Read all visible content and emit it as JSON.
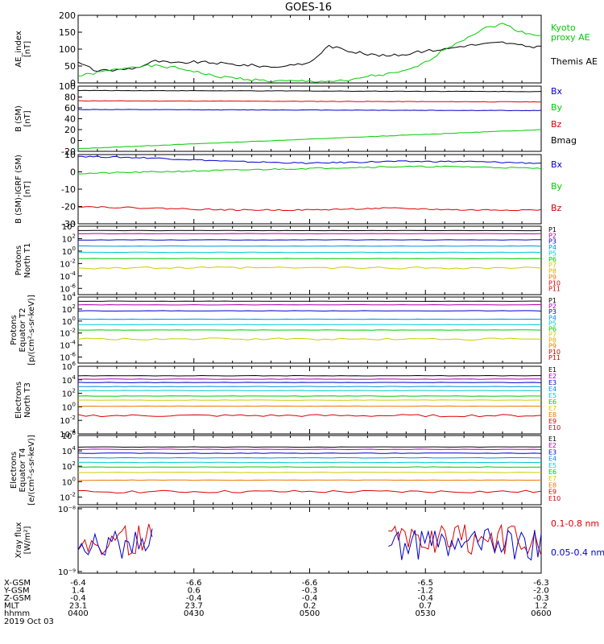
{
  "title": "GOES-16",
  "colors": {
    "black": "#000000",
    "red": "#dd0000",
    "green": "#00cc00",
    "blue": "#0000cc",
    "cyan": "#00cccc",
    "yellow": "#cccc00",
    "orange": "#ee7700"
  },
  "chart_data": [
    {
      "type": "line",
      "panel": "ae",
      "ylabel": [
        "AE_index",
        "[nT]"
      ],
      "ylim": [
        0,
        200
      ],
      "ticks": [
        0,
        50,
        100,
        150,
        200
      ],
      "legend": [
        {
          "text": "Kyoto",
          "color": "#00cc00"
        },
        {
          "text": "proxy AE",
          "color": "#00cc00"
        },
        {
          "text": "Themis AE",
          "color": "#000000"
        }
      ],
      "x": [
        "0400",
        "0405",
        "0410",
        "0415",
        "0420",
        "0425",
        "0430",
        "0435",
        "0440",
        "0445",
        "0450",
        "0455",
        "0500",
        "0505",
        "0510",
        "0515",
        "0520",
        "0525",
        "0530",
        "0535",
        "0540",
        "0545",
        "0550",
        "0555",
        "0600"
      ],
      "series": [
        {
          "name": "Themis AE",
          "color": "#000000",
          "values": [
            60,
            35,
            38,
            45,
            65,
            58,
            62,
            60,
            55,
            52,
            48,
            50,
            60,
            110,
            95,
            85,
            80,
            85,
            95,
            100,
            110,
            115,
            120,
            110,
            105
          ]
        },
        {
          "name": "Kyoto proxy AE",
          "color": "#00cc00",
          "values": [
            20,
            30,
            40,
            50,
            50,
            45,
            35,
            20,
            15,
            10,
            5,
            5,
            5,
            5,
            5,
            20,
            25,
            35,
            60,
            100,
            130,
            160,
            175,
            150,
            140
          ]
        }
      ]
    },
    {
      "type": "line",
      "panel": "bsm",
      "ylabel": [
        "B (SM)",
        "[nT]"
      ],
      "ylim": [
        -20,
        100
      ],
      "ticks": [
        -20,
        0,
        20,
        40,
        60,
        80,
        100
      ],
      "legend": [
        {
          "text": "Bx",
          "color": "#0000cc"
        },
        {
          "text": "By",
          "color": "#00cc00"
        },
        {
          "text": "Bz",
          "color": "#dd0000"
        },
        {
          "text": "Bmag",
          "color": "#000000"
        }
      ],
      "x": [
        "0400",
        "0600"
      ],
      "series": [
        {
          "name": "Bmag",
          "color": "#000000",
          "values": [
            92,
            90
          ]
        },
        {
          "name": "Bz",
          "color": "#dd0000",
          "values": [
            73,
            71
          ]
        },
        {
          "name": "Bx",
          "color": "#0000cc",
          "values": [
            57,
            55
          ]
        },
        {
          "name": "By",
          "color": "#00cc00",
          "values": [
            -15,
            20
          ]
        }
      ]
    },
    {
      "type": "line",
      "panel": "bigrf",
      "ylabel": [
        "B (SM)-IGRF (SM)",
        "[nT]"
      ],
      "ylim": [
        -30,
        10
      ],
      "ticks": [
        -30,
        -20,
        -10,
        0,
        10
      ],
      "legend": [
        {
          "text": "Bx",
          "color": "#0000cc"
        },
        {
          "text": "By",
          "color": "#00cc00"
        },
        {
          "text": "Bz",
          "color": "#dd0000"
        }
      ],
      "x": [
        "0400",
        "0420",
        "0440",
        "0500",
        "0520",
        "0540",
        "0600"
      ],
      "series": [
        {
          "name": "Bx",
          "color": "#0000cc",
          "values": [
            9,
            8,
            6,
            5,
            6,
            6,
            5
          ]
        },
        {
          "name": "By",
          "color": "#00cc00",
          "values": [
            -1,
            0,
            1,
            2,
            3,
            3,
            2
          ]
        },
        {
          "name": "Bz",
          "color": "#dd0000",
          "values": [
            -20,
            -21,
            -22,
            -22,
            -21,
            -22,
            -22
          ]
        }
      ]
    },
    {
      "type": "line",
      "panel": "p1",
      "log": true,
      "ylabel": [
        "Protons",
        "North T1"
      ],
      "ylim_exp": [
        -7,
        4
      ],
      "tick_exps": [
        -6,
        -4,
        -2,
        0,
        2,
        4
      ],
      "legend": [
        "P1",
        "P2",
        "P3",
        "P4",
        "P5",
        "P6",
        "P7",
        "P8",
        "P9",
        "P10",
        "P11"
      ],
      "legend_colors": [
        "#000000",
        "#ad00ad",
        "#0000cc",
        "#0090dd",
        "#00cccc",
        "#00cc00",
        "#cccc00",
        "#ddaa00",
        "#ee7700",
        "#dd0000",
        "#dd0000"
      ],
      "series": [
        {
          "name": "P1",
          "color": "#000000",
          "log10": 3.3
        },
        {
          "name": "P2",
          "color": "#ad00ad",
          "log10": 2.8
        },
        {
          "name": "P3",
          "color": "#0000cc",
          "log10": 1.8
        },
        {
          "name": "P4",
          "color": "#0090dd",
          "log10": 0.8
        },
        {
          "name": "P5",
          "color": "#00cccc",
          "log10": -0.2
        },
        {
          "name": "P6",
          "color": "#00cc00",
          "log10": -1.2
        },
        {
          "name": "P7",
          "color": "#cccc00",
          "log10": -2.7
        }
      ]
    },
    {
      "type": "line",
      "panel": "p2",
      "log": true,
      "ylabel": [
        "Protons",
        "Equator T2",
        "[p/(cm²-s-sr-keV)]"
      ],
      "ylim_exp": [
        -7,
        4
      ],
      "tick_exps": [
        -6,
        -4,
        -2,
        0,
        2,
        4
      ],
      "legend": [
        "P1",
        "P2",
        "P3",
        "P4",
        "P5",
        "P6",
        "P7",
        "P8",
        "P9",
        "P10",
        "P11"
      ],
      "legend_colors": [
        "#000000",
        "#ad00ad",
        "#0000cc",
        "#0090dd",
        "#00cccc",
        "#00cc00",
        "#cccc00",
        "#ddaa00",
        "#ee7700",
        "#dd0000",
        "#dd0000"
      ],
      "series": [
        {
          "name": "P1",
          "color": "#000000",
          "log10": 3.3
        },
        {
          "name": "P2",
          "color": "#ad00ad",
          "log10": 2.7
        },
        {
          "name": "P3",
          "color": "#0000cc",
          "log10": 1.7
        },
        {
          "name": "P4",
          "color": "#0090dd",
          "log10": 0.3
        },
        {
          "name": "P5",
          "color": "#00cccc",
          "log10": -0.6
        },
        {
          "name": "P6",
          "color": "#00cc00",
          "log10": -1.5
        },
        {
          "name": "P7",
          "color": "#cccc00",
          "log10": -3.0
        }
      ]
    },
    {
      "type": "line",
      "panel": "e1",
      "log": true,
      "ylabel": [
        "Electrons",
        "North T3"
      ],
      "ylim_exp": [
        -4,
        6
      ],
      "tick_exps": [
        -4,
        -2,
        0,
        2,
        4,
        6
      ],
      "legend": [
        "E1",
        "E2",
        "E3",
        "E4",
        "E5",
        "E6",
        "E7",
        "E8",
        "E9",
        "E10"
      ],
      "legend_colors": [
        "#000000",
        "#ad00ad",
        "#0000cc",
        "#0090dd",
        "#00cccc",
        "#00cc00",
        "#cccc00",
        "#ee7700",
        "#dd0000",
        "#dd0000"
      ],
      "series": [
        {
          "name": "E1",
          "color": "#000000",
          "log10": 4.6
        },
        {
          "name": "E2",
          "color": "#ad00ad",
          "log10": 4.1
        },
        {
          "name": "E3",
          "color": "#0000cc",
          "log10": 3.6
        },
        {
          "name": "E4",
          "color": "#0090dd",
          "log10": 3.0
        },
        {
          "name": "E5",
          "color": "#00cccc",
          "log10": 2.4
        },
        {
          "name": "E6",
          "color": "#00cc00",
          "log10": 1.6
        },
        {
          "name": "E7",
          "color": "#cccc00",
          "log10": 1.0
        },
        {
          "name": "E8",
          "color": "#ee7700",
          "log10": 0.1
        },
        {
          "name": "E9",
          "color": "#dd0000",
          "log10": -1.3
        }
      ]
    },
    {
      "type": "line",
      "panel": "e2",
      "log": true,
      "ylabel": [
        "Electrons",
        "Equator T4",
        "[e/(cm²-s-sr-keV)]"
      ],
      "ylim_exp": [
        -3,
        6
      ],
      "tick_exps": [
        -2,
        0,
        2,
        4,
        6
      ],
      "legend": [
        "E1",
        "E2",
        "E3",
        "E4",
        "E5",
        "E6",
        "E7",
        "E8",
        "E9",
        "E10"
      ],
      "legend_colors": [
        "#000000",
        "#ad00ad",
        "#0000cc",
        "#0090dd",
        "#00cccc",
        "#00cc00",
        "#cccc00",
        "#ee7700",
        "#dd0000",
        "#dd0000"
      ],
      "series": [
        {
          "name": "E1",
          "color": "#000000",
          "log10": 4.5
        },
        {
          "name": "E2",
          "color": "#ad00ad",
          "log10": 4.2
        },
        {
          "name": "E3",
          "color": "#0000cc",
          "log10": 3.7
        },
        {
          "name": "E4",
          "color": "#0090dd",
          "log10": 3.1
        },
        {
          "name": "E5",
          "color": "#00cccc",
          "log10": 2.5
        },
        {
          "name": "E6",
          "color": "#00cc00",
          "log10": 1.9
        },
        {
          "name": "E7",
          "color": "#cccc00",
          "log10": 1.2
        },
        {
          "name": "E8",
          "color": "#ee7700",
          "log10": 0.2
        },
        {
          "name": "E9",
          "color": "#dd0000",
          "log10": -1.3
        }
      ]
    },
    {
      "type": "line",
      "panel": "xray",
      "log": true,
      "ylabel": [
        "Xray flux",
        "[W/m²]"
      ],
      "tick_labels": [
        "10⁻⁸",
        "10⁻⁹"
      ],
      "legend": [
        {
          "text": "0.1-0.8 nm",
          "color": "#dd0000"
        },
        {
          "text": "0.05-0.4 nm",
          "color": "#0000cc"
        }
      ],
      "series": [
        {
          "name": "0.1-0.8 nm",
          "color": "#dd0000"
        },
        {
          "name": "0.05-0.4 nm",
          "color": "#0000cc"
        }
      ]
    }
  ],
  "xaxis": {
    "row_labels": [
      "X-GSM",
      "Y-GSM",
      "Z-GSM",
      "MLT",
      "hhmm"
    ],
    "columns": [
      {
        "values": [
          "-6.4",
          "1.4",
          "-0.4",
          "23.1",
          "0400"
        ]
      },
      {
        "values": [
          "-6.6",
          "0.6",
          "-0.4",
          "23.7",
          "0430"
        ]
      },
      {
        "values": [
          "-6.6",
          "-0.3",
          "-0.4",
          "0.2",
          "0500"
        ]
      },
      {
        "values": [
          "-6.5",
          "-1.2",
          "-0.4",
          "0.7",
          "0530"
        ]
      },
      {
        "values": [
          "-6.3",
          "-2.0",
          "-0.3",
          "1.2",
          "0600"
        ]
      }
    ],
    "date": "2019 Oct 03"
  }
}
